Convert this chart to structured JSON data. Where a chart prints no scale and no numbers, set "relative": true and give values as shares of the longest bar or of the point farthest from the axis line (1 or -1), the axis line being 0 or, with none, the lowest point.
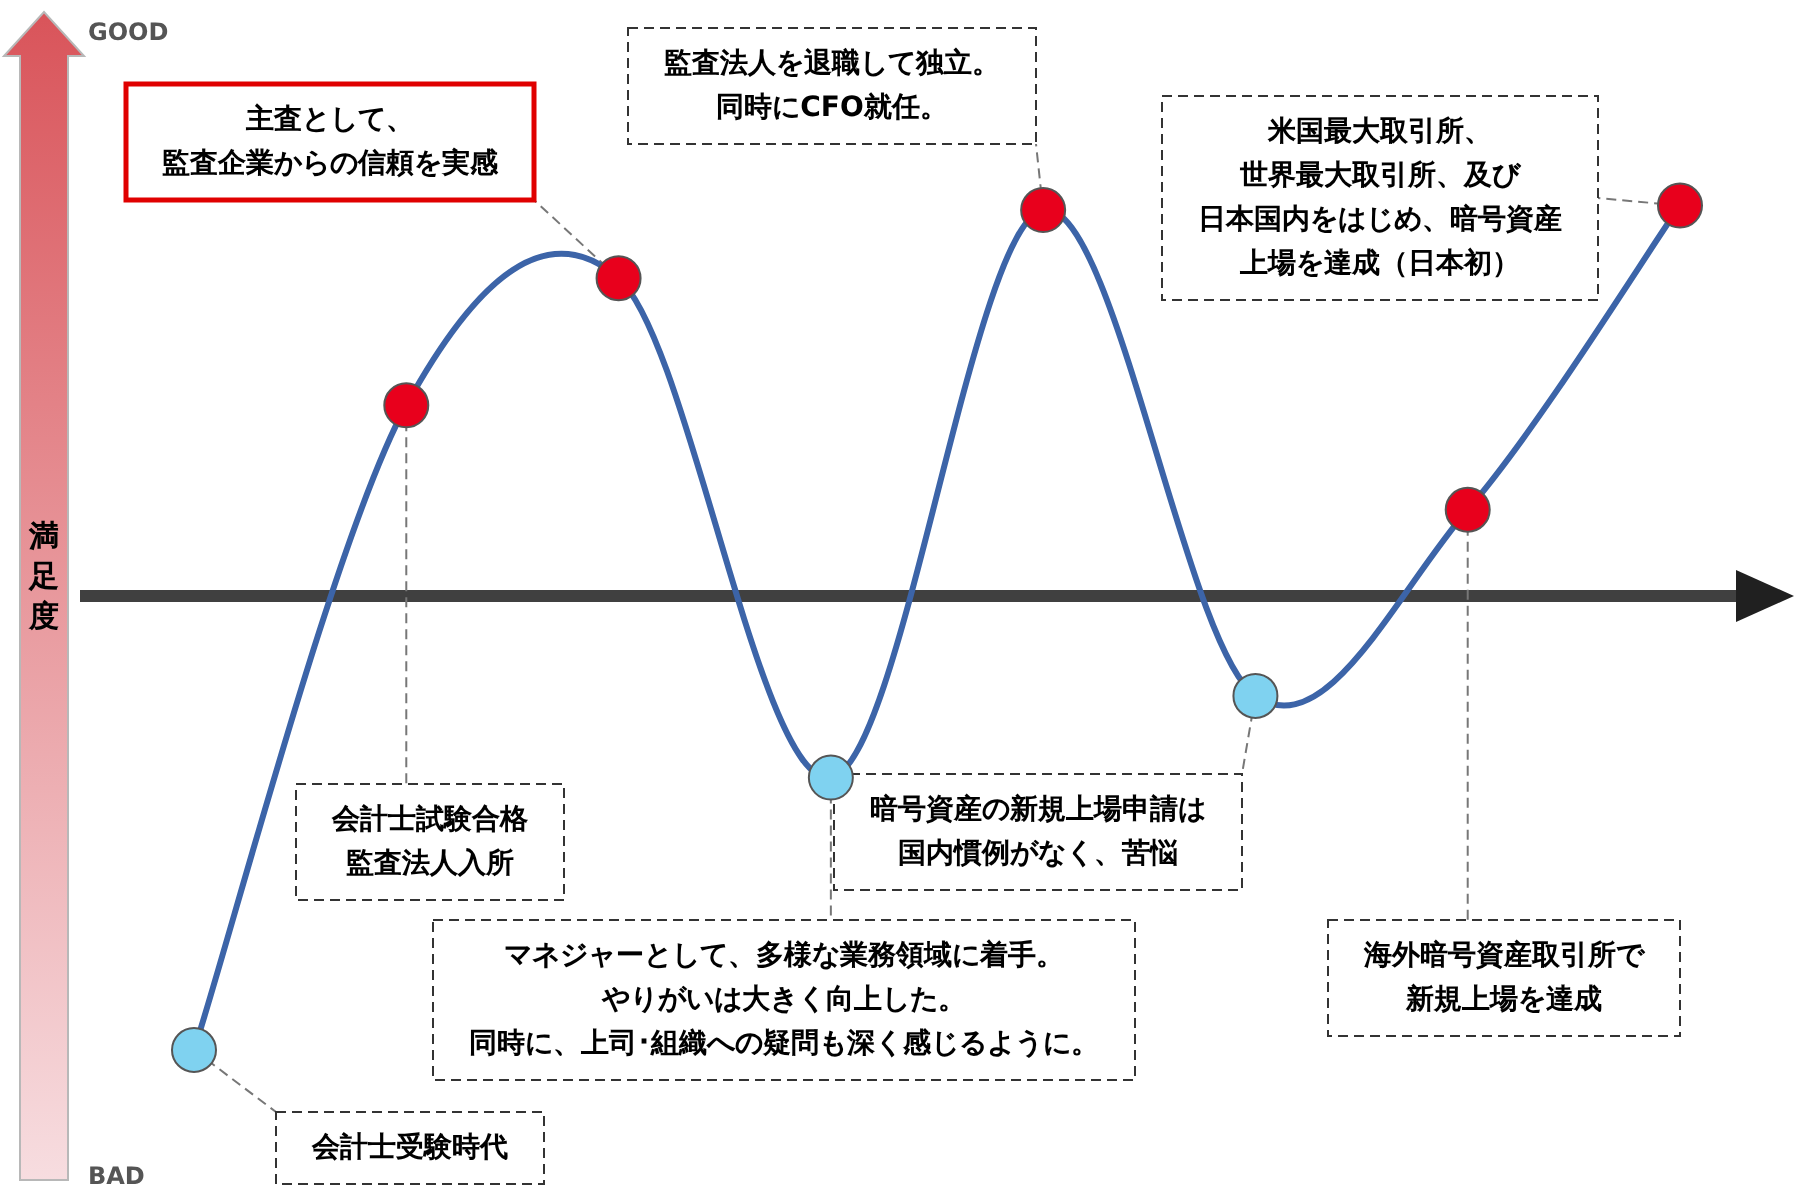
{
  "chart_data": {
    "type": "line",
    "relative": true,
    "ylabel": "満足度",
    "categories": [
      null,
      null,
      null,
      null,
      null,
      null,
      null,
      null
    ],
    "series": [
      {
        "color": "#3c64a8",
        "values": [
          -1,
          0.42,
          0.7,
          -0.4,
          0.85,
          -0.22,
          0.19,
          0.86
        ],
        "colors": [
          "#7fd2f0",
          "#e8001c",
          "#e8001c",
          "#7fd2f0",
          "#e8001c",
          "#7fd2f0",
          "#e8001c",
          "#e8001c"
        ]
      }
    ],
    "marker": "circle",
    "annotations": [
      "会計士受験時代",
      "会計士試験合格監査法人入所",
      "主査として、監査企業からの信頼を実感",
      "マネジャーとして、多様な業務領域に着手。やりがいは大きく向上した。同時に、上司･組織への疑問も深く感じるように。",
      "監査法人を退職して独立。同時にCFO就任。",
      "暗号資産の新規上場申請は国内慣例がなく、苦悩",
      "海外暗号資産取引所で新規上場を達成",
      "米国最大取引所、世界最大取引所、及び日本国内をはじめ、暗号資産上場を達成（日本初）",
      "GOOD",
      "BAD"
    ]
  }
}
